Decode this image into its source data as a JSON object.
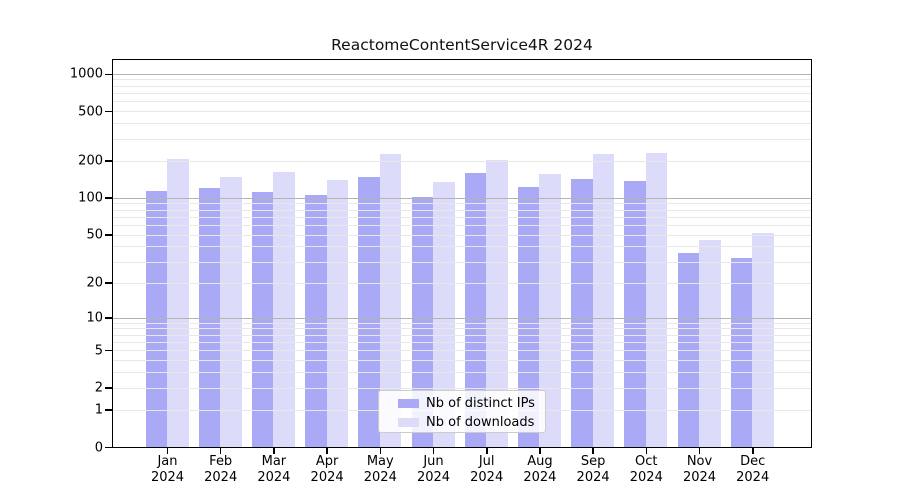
{
  "title": "ReactomeContentService4R 2024",
  "chart_data": {
    "type": "bar",
    "title": "ReactomeContentService4R 2024",
    "categories": [
      "Jan",
      "Feb",
      "Mar",
      "Apr",
      "May",
      "Jun",
      "Jul",
      "Aug",
      "Sep",
      "Oct",
      "Nov",
      "Dec"
    ],
    "year_label": "2024",
    "series": [
      {
        "name": "Nb of distinct IPs",
        "color": "#a9a9f6",
        "values": [
          114,
          120,
          111,
          105,
          147,
          102,
          159,
          123,
          142,
          136,
          35,
          32
        ]
      },
      {
        "name": "Nb of downloads",
        "color": "#dcdcfa",
        "values": [
          205,
          147,
          163,
          140,
          226,
          135,
          202,
          156,
          226,
          232,
          45,
          52
        ]
      }
    ],
    "xlabel": "",
    "ylabel": "",
    "yscale": "log1p",
    "ylim": [
      0,
      1290
    ],
    "yticks": [
      1000,
      500,
      200,
      100,
      50,
      20,
      10,
      5,
      2,
      1,
      0
    ],
    "grid": "horizontal log minor and major gridlines drawn over bars",
    "legend_position": "bottom-center",
    "colors": {
      "major_gridline": "#b3b3b3",
      "minor_gridline": "#e8e8e8",
      "spine": "#000000",
      "background": "#ffffff"
    }
  }
}
